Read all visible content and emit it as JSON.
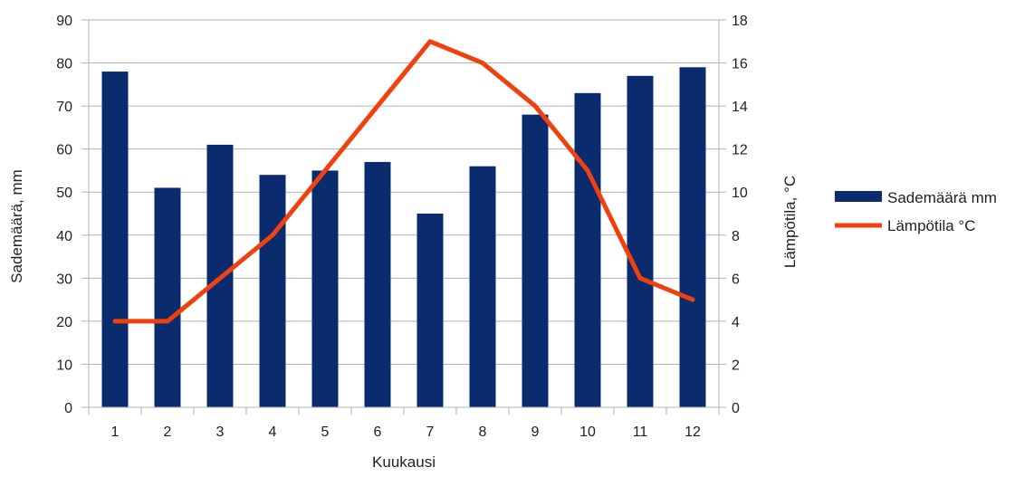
{
  "chart_data": {
    "type": "bar",
    "categories": [
      "1",
      "2",
      "3",
      "4",
      "5",
      "6",
      "7",
      "8",
      "9",
      "10",
      "11",
      "12"
    ],
    "xlabel": "Kuukausi",
    "ylabel": "Sademäärä, mm",
    "y2label": "Lämpötila, °C",
    "ylim": [
      0,
      90
    ],
    "y2lim": [
      0,
      18
    ],
    "yticks": [
      0,
      10,
      20,
      30,
      40,
      50,
      60,
      70,
      80,
      90
    ],
    "y2ticks": [
      0,
      2,
      4,
      6,
      8,
      10,
      12,
      14,
      16,
      18
    ],
    "grid": true,
    "legend_position": "right",
    "series": [
      {
        "name": "Sademäärä mm",
        "type": "bar",
        "axis": "left",
        "color": "#0a2c6e",
        "values": [
          78,
          51,
          61,
          54,
          55,
          57,
          45,
          56,
          68,
          73,
          77,
          79
        ]
      },
      {
        "name": "Lämpötila °C",
        "type": "line",
        "axis": "right",
        "color": "#f0400e",
        "values": [
          4,
          4,
          6,
          8,
          11,
          14,
          17,
          16,
          14,
          11,
          6,
          5
        ]
      }
    ]
  }
}
